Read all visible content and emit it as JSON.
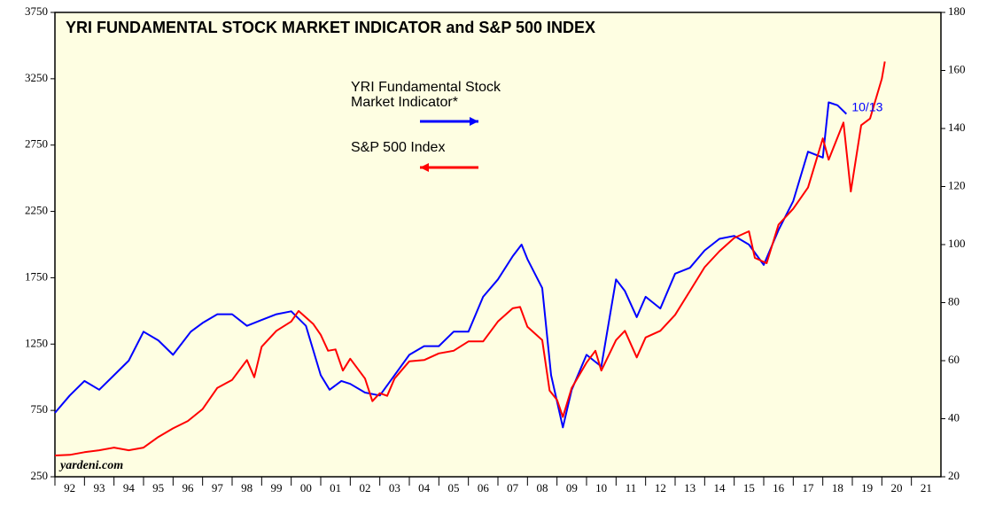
{
  "chart_data": {
    "type": "line",
    "title": "YRI FUNDAMENTAL STOCK MARKET INDICATOR and S&P 500 INDEX",
    "source": "yardeni.com",
    "annotations": [
      "10/13"
    ],
    "xlim": [
      1992,
      2022
    ],
    "xticks": [
      {
        "value": 1992,
        "label": "92"
      },
      {
        "value": 1993,
        "label": "93"
      },
      {
        "value": 1994,
        "label": "94"
      },
      {
        "value": 1995,
        "label": "95"
      },
      {
        "value": 1996,
        "label": "96"
      },
      {
        "value": 1997,
        "label": "97"
      },
      {
        "value": 1998,
        "label": "98"
      },
      {
        "value": 1999,
        "label": "99"
      },
      {
        "value": 2000,
        "label": "00"
      },
      {
        "value": 2001,
        "label": "01"
      },
      {
        "value": 2002,
        "label": "02"
      },
      {
        "value": 2003,
        "label": "03"
      },
      {
        "value": 2004,
        "label": "04"
      },
      {
        "value": 2005,
        "label": "05"
      },
      {
        "value": 2006,
        "label": "06"
      },
      {
        "value": 2007,
        "label": "07"
      },
      {
        "value": 2008,
        "label": "08"
      },
      {
        "value": 2009,
        "label": "09"
      },
      {
        "value": 2010,
        "label": "10"
      },
      {
        "value": 2011,
        "label": "11"
      },
      {
        "value": 2012,
        "label": "12"
      },
      {
        "value": 2013,
        "label": "13"
      },
      {
        "value": 2014,
        "label": "14"
      },
      {
        "value": 2015,
        "label": "15"
      },
      {
        "value": 2016,
        "label": "16"
      },
      {
        "value": 2017,
        "label": "17"
      },
      {
        "value": 2018,
        "label": "18"
      },
      {
        "value": 2019,
        "label": "19"
      },
      {
        "value": 2020,
        "label": "20"
      },
      {
        "value": 2021,
        "label": "21"
      }
    ],
    "ylim": [
      250,
      3750
    ],
    "yticks": [
      250,
      750,
      1250,
      1750,
      2250,
      2750,
      3250,
      3750
    ],
    "y2lim": [
      20,
      180
    ],
    "y2ticks": [
      20,
      40,
      60,
      80,
      100,
      120,
      140,
      160,
      180
    ],
    "series": [
      {
        "name": "YRI Fundamental Stock Market Indicator*",
        "color": "#0000ff",
        "axis": "y2",
        "x": [
          1992.0,
          1992.5,
          1993.0,
          1993.5,
          1994.0,
          1994.5,
          1995.0,
          1995.5,
          1996.0,
          1996.3,
          1996.6,
          1997.0,
          1997.5,
          1998.0,
          1998.5,
          1999.0,
          1999.5,
          2000.0,
          2000.5,
          2001.0,
          2001.3,
          2001.7,
          2002.0,
          2002.5,
          2003.0,
          2003.5,
          2004.0,
          2004.5,
          2005.0,
          2005.5,
          2006.0,
          2006.5,
          2007.0,
          2007.5,
          2007.8,
          2008.0,
          2008.5,
          2008.8,
          2009.2,
          2009.5,
          2010.0,
          2010.5,
          2011.0,
          2011.3,
          2011.7,
          2012.0,
          2012.5,
          2013.0,
          2013.5,
          2014.0,
          2014.5,
          2015.0,
          2015.5,
          2016.0,
          2016.5,
          2017.0,
          2017.5,
          2018.0,
          2018.2,
          2018.5,
          2018.8
        ],
        "values": [
          42,
          48,
          53,
          50,
          55,
          60,
          70,
          67,
          62,
          66,
          70,
          73,
          76,
          76,
          72,
          74,
          76,
          77,
          72,
          55,
          50,
          53,
          52,
          49,
          48,
          55,
          62,
          65,
          65,
          70,
          70,
          82,
          88,
          96,
          100,
          95,
          85,
          55,
          37,
          50,
          62,
          58,
          88,
          84,
          75,
          82,
          78,
          90,
          92,
          98,
          102,
          103,
          100,
          93,
          105,
          115,
          132,
          130,
          149,
          148,
          145
        ]
      },
      {
        "name": "S&P 500 Index",
        "color": "#ff0000",
        "x": [
          1992.0,
          1992.5,
          1993.0,
          1993.5,
          1994.0,
          1994.5,
          1995.0,
          1995.5,
          1996.0,
          1996.5,
          1997.0,
          1997.5,
          1998.0,
          1998.5,
          1998.75,
          1999.0,
          1999.5,
          2000.0,
          2000.25,
          2000.5,
          2000.75,
          2001.0,
          2001.25,
          2001.5,
          2001.75,
          2002.0,
          2002.5,
          2002.75,
          2003.0,
          2003.25,
          2003.5,
          2004.0,
          2004.5,
          2005.0,
          2005.5,
          2006.0,
          2006.5,
          2007.0,
          2007.5,
          2007.75,
          2008.0,
          2008.5,
          2008.75,
          2009.0,
          2009.2,
          2009.5,
          2010.0,
          2010.3,
          2010.5,
          2011.0,
          2011.3,
          2011.7,
          2012.0,
          2012.5,
          2013.0,
          2013.5,
          2014.0,
          2014.5,
          2015.0,
          2015.5,
          2015.7,
          2016.1,
          2016.5,
          2017.0,
          2017.5,
          2018.0,
          2018.2,
          2018.7,
          2018.95,
          2019.3,
          2019.6,
          2020.0,
          2020.1
        ],
        "values": [
          410,
          415,
          435,
          450,
          470,
          450,
          470,
          550,
          615,
          670,
          760,
          920,
          980,
          1130,
          1000,
          1230,
          1350,
          1420,
          1500,
          1450,
          1400,
          1320,
          1200,
          1210,
          1050,
          1140,
          990,
          820,
          880,
          860,
          990,
          1120,
          1130,
          1180,
          1200,
          1270,
          1270,
          1420,
          1520,
          1530,
          1380,
          1280,
          900,
          830,
          700,
          920,
          1110,
          1200,
          1050,
          1280,
          1350,
          1150,
          1300,
          1350,
          1470,
          1650,
          1830,
          1950,
          2050,
          2100,
          1900,
          1860,
          2150,
          2270,
          2430,
          2800,
          2640,
          2920,
          2400,
          2900,
          2950,
          3250,
          3380
        ]
      }
    ]
  }
}
